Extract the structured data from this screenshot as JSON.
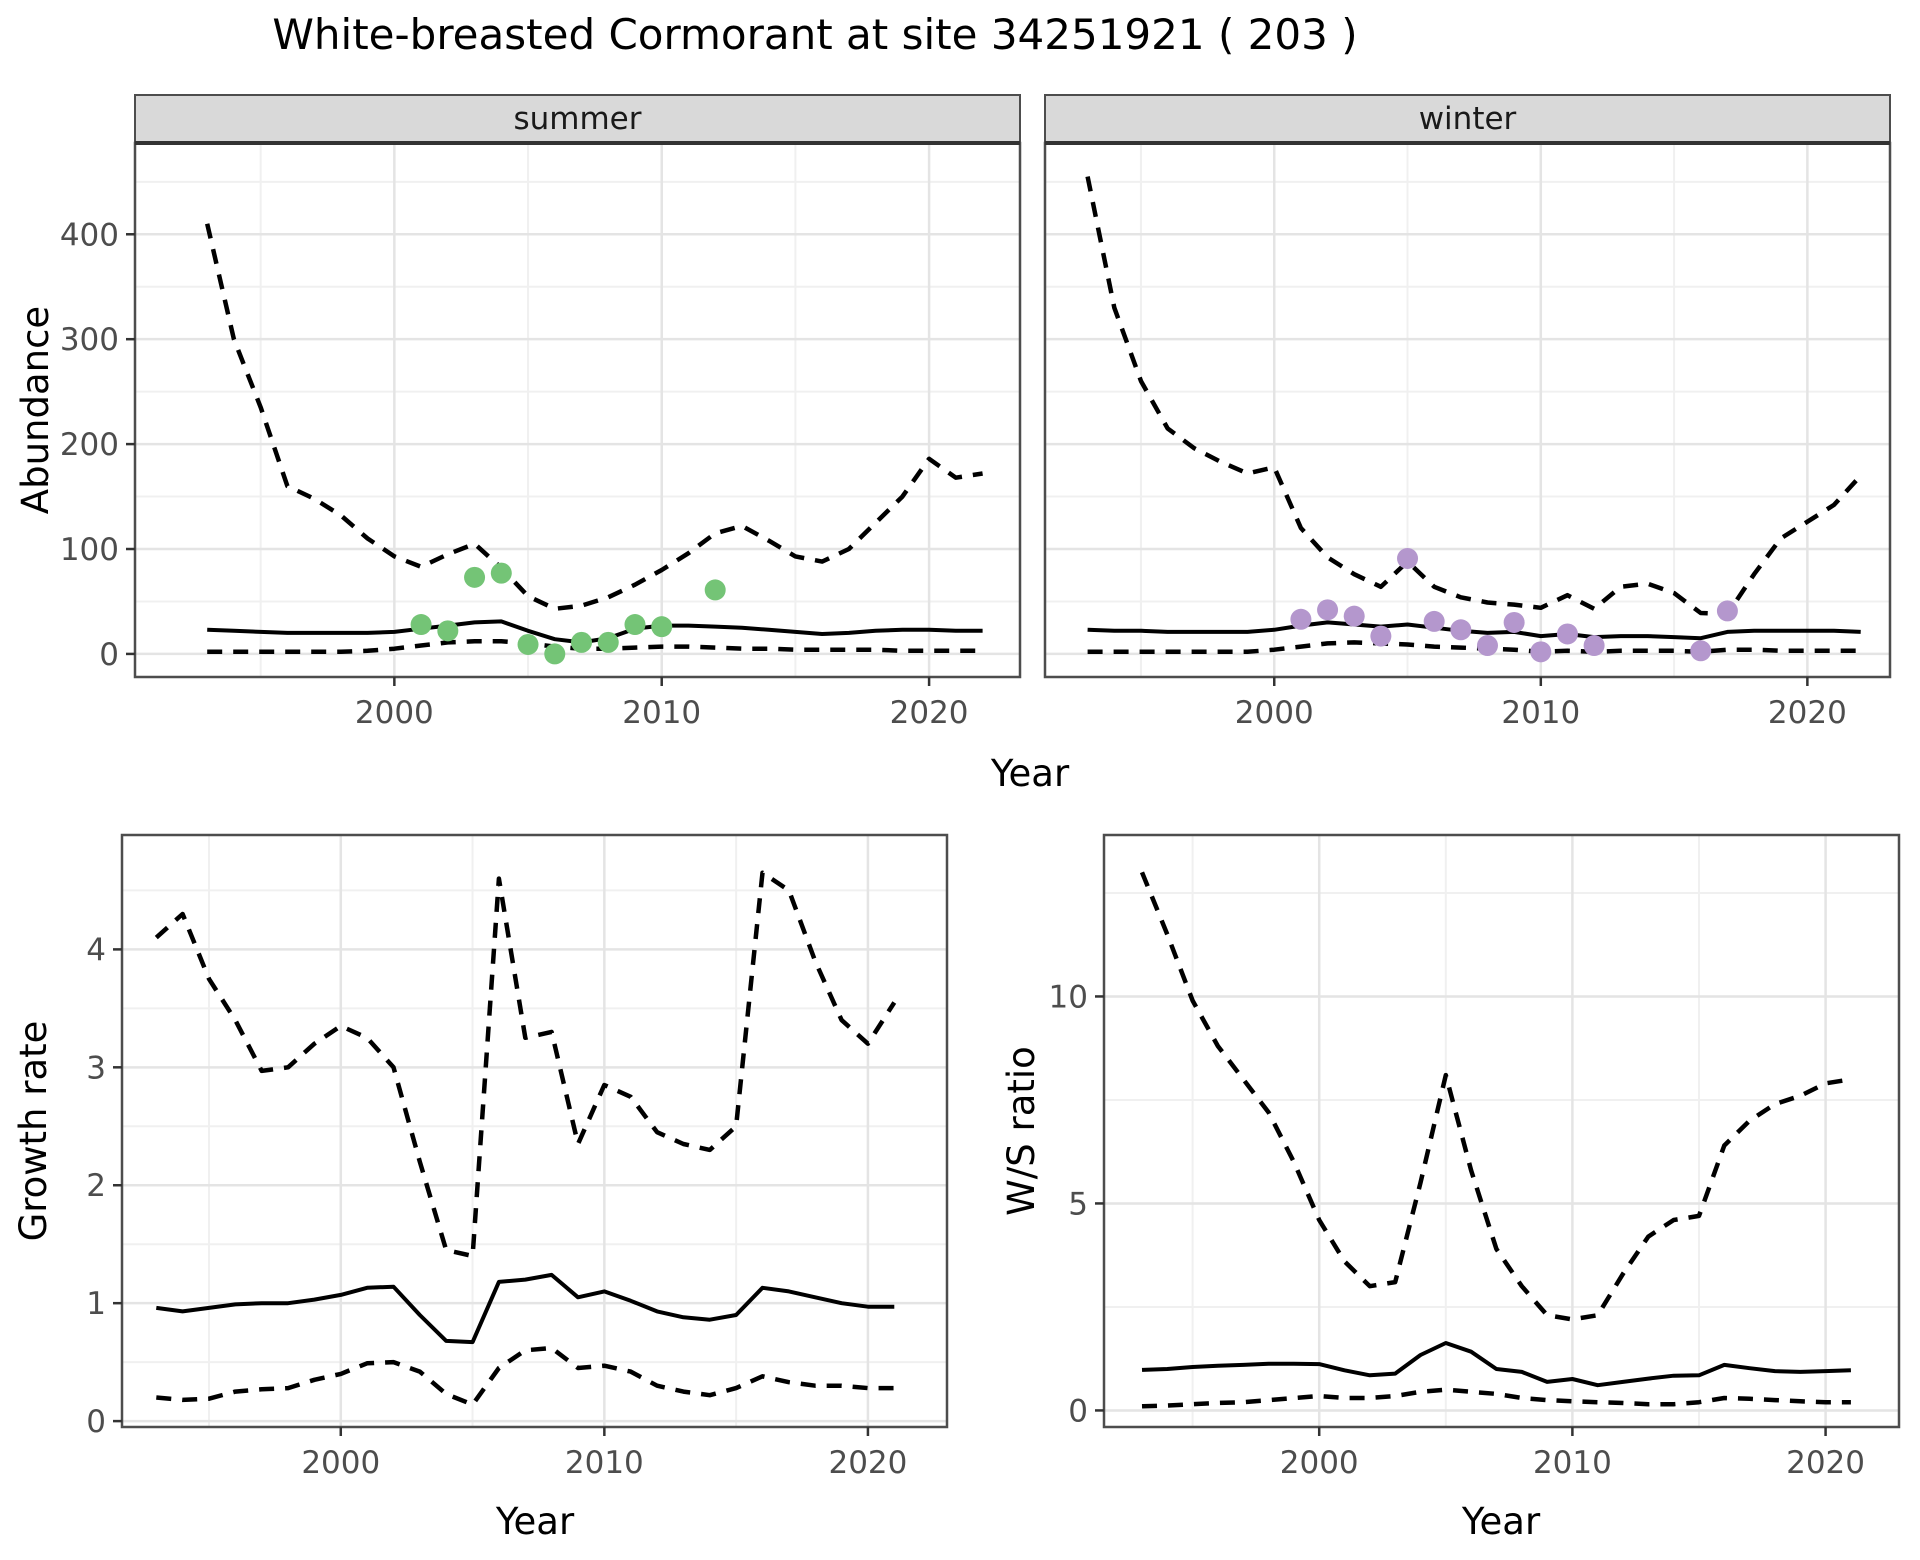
{
  "title": "White-breasted Cormorant at site 34251921 ( 203 )",
  "axes": {
    "abundance_label": "Abundance",
    "growth_label": "Growth rate",
    "ws_label": "W/S ratio",
    "year_label": "Year"
  },
  "colors": {
    "summer_point": "#74c476",
    "winter_point": "#b497cd",
    "line": "#000000",
    "strip_bg": "#d9d9d9",
    "strip_underline": "#333333",
    "panel_border": "#4d4d4d",
    "grid_major": "#e4e4e4",
    "grid_minor": "#f0f0f0",
    "tick_mark": "#333333",
    "tick_text": "#4d4d4d"
  },
  "chart_data": [
    {
      "id": "abundance-summer",
      "type": "line",
      "facet_label": "summer",
      "xlabel": "Year",
      "ylabel": "Abundance",
      "x_start": 1993,
      "xlim": [
        1990.3,
        2023.4
      ],
      "ylim": [
        -22,
        487
      ],
      "x_ticks": [
        2000,
        2010,
        2020
      ],
      "y_ticks": [
        0,
        100,
        200,
        300,
        400
      ],
      "grid": true,
      "legend": "none",
      "series": [
        {
          "name": "upper_ci",
          "style": "dashed",
          "values": [
            410,
            300,
            235,
            160,
            148,
            132,
            110,
            93,
            83,
            95,
            105,
            82,
            55,
            43,
            46,
            54,
            66,
            80,
            96,
            115,
            122,
            108,
            93,
            88,
            100,
            125,
            150,
            186,
            168,
            172
          ]
        },
        {
          "name": "median",
          "style": "solid",
          "values": [
            23,
            22,
            21,
            20,
            20,
            20,
            20,
            21,
            24,
            27,
            30,
            31,
            22,
            14,
            11,
            15,
            24,
            27,
            27,
            26,
            25,
            23,
            21,
            19,
            20,
            22,
            23,
            23,
            22,
            22
          ]
        },
        {
          "name": "lower_ci",
          "style": "dashed",
          "values": [
            2,
            2,
            2,
            2,
            2,
            2,
            3,
            5,
            8,
            11,
            12,
            12,
            10,
            7,
            5,
            5,
            6,
            7,
            7,
            6,
            5,
            5,
            4,
            4,
            4,
            4,
            3,
            3,
            3,
            3
          ]
        }
      ],
      "points": {
        "name": "summer_observations",
        "color": "#74c476",
        "data": [
          [
            2001,
            28
          ],
          [
            2002,
            22
          ],
          [
            2003,
            73
          ],
          [
            2004,
            77
          ],
          [
            2005,
            9
          ],
          [
            2006,
            0
          ],
          [
            2007,
            11
          ],
          [
            2008,
            11
          ],
          [
            2009,
            28
          ],
          [
            2010,
            26
          ],
          [
            2012,
            61
          ]
        ]
      }
    },
    {
      "id": "abundance-winter",
      "type": "line",
      "facet_label": "winter",
      "xlabel": "Year",
      "ylabel": "Abundance",
      "x_start": 1993,
      "xlim": [
        1991.4,
        2023.1
      ],
      "ylim": [
        -22,
        487
      ],
      "x_ticks": [
        2000,
        2010,
        2020
      ],
      "y_ticks": [
        0,
        100,
        200,
        300,
        400
      ],
      "grid": true,
      "legend": "none",
      "series": [
        {
          "name": "upper_ci",
          "style": "dashed",
          "values": [
            455,
            330,
            260,
            215,
            196,
            183,
            172,
            178,
            120,
            92,
            76,
            64,
            88,
            64,
            54,
            49,
            47,
            44,
            56,
            43,
            64,
            67,
            58,
            39,
            38,
            76,
            110,
            126,
            142,
            170
          ]
        },
        {
          "name": "median",
          "style": "solid",
          "values": [
            23,
            22,
            22,
            21,
            21,
            21,
            21,
            23,
            27,
            30,
            28,
            26,
            28,
            25,
            22,
            20,
            21,
            17,
            19,
            16,
            17,
            17,
            16,
            15,
            21,
            22,
            22,
            22,
            22,
            21
          ]
        },
        {
          "name": "lower_ci",
          "style": "dashed",
          "values": [
            2,
            2,
            2,
            2,
            2,
            2,
            2,
            4,
            7,
            10,
            11,
            10,
            9,
            7,
            6,
            5,
            4,
            2,
            3,
            2,
            3,
            3,
            3,
            2,
            4,
            4,
            3,
            3,
            3,
            3
          ]
        }
      ],
      "points": {
        "name": "winter_observations",
        "color": "#b497cd",
        "data": [
          [
            2001,
            33
          ],
          [
            2002,
            42
          ],
          [
            2003,
            36
          ],
          [
            2004,
            17
          ],
          [
            2005,
            91
          ],
          [
            2006,
            31
          ],
          [
            2007,
            23
          ],
          [
            2008,
            8
          ],
          [
            2009,
            30
          ],
          [
            2010,
            2
          ],
          [
            2011,
            19
          ],
          [
            2012,
            8
          ],
          [
            2016,
            3
          ],
          [
            2017,
            41
          ]
        ]
      }
    },
    {
      "id": "growth-rate",
      "type": "line",
      "facet_label": "",
      "xlabel": "Year",
      "ylabel": "Growth rate",
      "x_start": 1993,
      "xlim": [
        1991.7,
        2023.0
      ],
      "ylim": [
        -0.05,
        4.97
      ],
      "x_ticks": [
        2000,
        2010,
        2020
      ],
      "y_ticks": [
        0,
        1,
        2,
        3,
        4
      ],
      "grid": true,
      "legend": "none",
      "series": [
        {
          "name": "upper_ci",
          "style": "dashed",
          "values": [
            4.1,
            4.3,
            3.75,
            3.4,
            2.97,
            3.0,
            3.2,
            3.35,
            3.25,
            3.0,
            2.2,
            1.45,
            1.4,
            4.6,
            3.25,
            3.3,
            2.35,
            2.85,
            2.75,
            2.45,
            2.35,
            2.3,
            2.5,
            4.65,
            4.5,
            3.9,
            3.4,
            3.2,
            3.55
          ]
        },
        {
          "name": "median",
          "style": "solid",
          "values": [
            0.96,
            0.93,
            0.96,
            0.99,
            1.0,
            1.0,
            1.03,
            1.07,
            1.13,
            1.14,
            0.9,
            0.68,
            0.67,
            1.18,
            1.2,
            1.24,
            1.05,
            1.1,
            1.02,
            0.93,
            0.88,
            0.86,
            0.9,
            1.13,
            1.1,
            1.05,
            1.0,
            0.97,
            0.97
          ]
        },
        {
          "name": "lower_ci",
          "style": "dashed",
          "values": [
            0.2,
            0.18,
            0.19,
            0.25,
            0.27,
            0.28,
            0.35,
            0.4,
            0.49,
            0.5,
            0.42,
            0.23,
            0.14,
            0.45,
            0.6,
            0.62,
            0.45,
            0.47,
            0.42,
            0.3,
            0.25,
            0.22,
            0.28,
            0.38,
            0.33,
            0.3,
            0.3,
            0.28,
            0.28
          ]
        }
      ]
    },
    {
      "id": "ws-ratio",
      "type": "line",
      "facet_label": "",
      "xlabel": "Year",
      "ylabel": "W/S ratio",
      "x_start": 1993,
      "xlim": [
        1991.5,
        2022.9
      ],
      "ylim": [
        -0.4,
        13.9
      ],
      "x_ticks": [
        2000,
        2010,
        2020
      ],
      "y_ticks": [
        0,
        5,
        10
      ],
      "grid": true,
      "legend": "none",
      "series": [
        {
          "name": "upper_ci",
          "style": "dashed",
          "values": [
            13.0,
            11.5,
            9.9,
            8.8,
            8.0,
            7.2,
            6.0,
            4.6,
            3.6,
            3.0,
            3.1,
            5.5,
            8.1,
            5.8,
            3.9,
            3.0,
            2.3,
            2.2,
            2.3,
            3.3,
            4.2,
            4.6,
            4.7,
            6.4,
            7.0,
            7.4,
            7.6,
            7.9,
            8.0
          ]
        },
        {
          "name": "median",
          "style": "solid",
          "values": [
            0.98,
            1.0,
            1.05,
            1.08,
            1.1,
            1.13,
            1.13,
            1.12,
            0.97,
            0.85,
            0.89,
            1.34,
            1.63,
            1.42,
            1.0,
            0.93,
            0.69,
            0.76,
            0.61,
            0.69,
            0.77,
            0.84,
            0.85,
            1.1,
            1.02,
            0.95,
            0.93,
            0.95,
            0.97
          ]
        },
        {
          "name": "lower_ci",
          "style": "dashed",
          "values": [
            0.1,
            0.12,
            0.15,
            0.18,
            0.2,
            0.25,
            0.3,
            0.35,
            0.3,
            0.3,
            0.35,
            0.45,
            0.5,
            0.45,
            0.4,
            0.3,
            0.25,
            0.22,
            0.2,
            0.18,
            0.15,
            0.15,
            0.2,
            0.3,
            0.28,
            0.25,
            0.22,
            0.2,
            0.2
          ]
        }
      ]
    }
  ]
}
